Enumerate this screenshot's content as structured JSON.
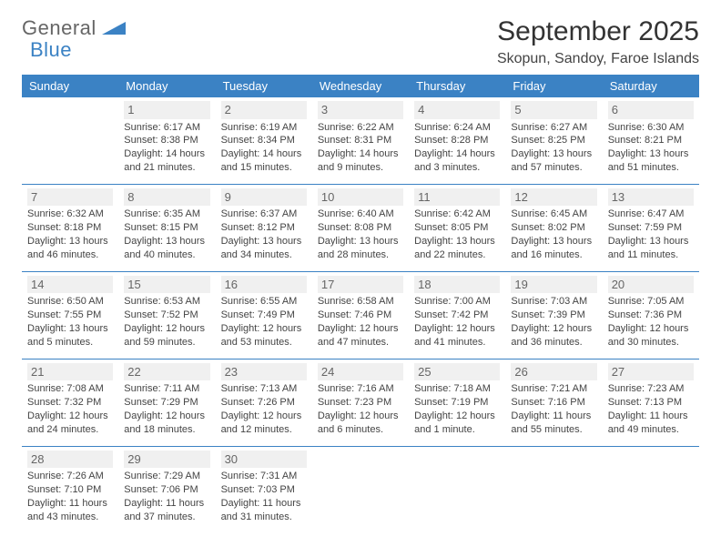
{
  "logo": {
    "part1": "General",
    "part2": "Blue"
  },
  "title": "September 2025",
  "location": "Skopun, Sandoy, Faroe Islands",
  "weekdays": [
    "Sunday",
    "Monday",
    "Tuesday",
    "Wednesday",
    "Thursday",
    "Friday",
    "Saturday"
  ],
  "colors": {
    "header_bg": "#3b82c4",
    "header_fg": "#ffffff",
    "border": "#3b82c4",
    "daynum_bg": "#f0f0f0",
    "text": "#444444"
  },
  "layout": {
    "first_weekday_offset": 1,
    "days_in_month": 30,
    "cell_fontsize_pt": 8,
    "header_fontsize_pt": 10,
    "title_fontsize_pt": 22
  },
  "days": [
    {
      "n": 1,
      "sunrise": "6:17 AM",
      "sunset": "8:38 PM",
      "daylight": "14 hours and 21 minutes."
    },
    {
      "n": 2,
      "sunrise": "6:19 AM",
      "sunset": "8:34 PM",
      "daylight": "14 hours and 15 minutes."
    },
    {
      "n": 3,
      "sunrise": "6:22 AM",
      "sunset": "8:31 PM",
      "daylight": "14 hours and 9 minutes."
    },
    {
      "n": 4,
      "sunrise": "6:24 AM",
      "sunset": "8:28 PM",
      "daylight": "14 hours and 3 minutes."
    },
    {
      "n": 5,
      "sunrise": "6:27 AM",
      "sunset": "8:25 PM",
      "daylight": "13 hours and 57 minutes."
    },
    {
      "n": 6,
      "sunrise": "6:30 AM",
      "sunset": "8:21 PM",
      "daylight": "13 hours and 51 minutes."
    },
    {
      "n": 7,
      "sunrise": "6:32 AM",
      "sunset": "8:18 PM",
      "daylight": "13 hours and 46 minutes."
    },
    {
      "n": 8,
      "sunrise": "6:35 AM",
      "sunset": "8:15 PM",
      "daylight": "13 hours and 40 minutes."
    },
    {
      "n": 9,
      "sunrise": "6:37 AM",
      "sunset": "8:12 PM",
      "daylight": "13 hours and 34 minutes."
    },
    {
      "n": 10,
      "sunrise": "6:40 AM",
      "sunset": "8:08 PM",
      "daylight": "13 hours and 28 minutes."
    },
    {
      "n": 11,
      "sunrise": "6:42 AM",
      "sunset": "8:05 PM",
      "daylight": "13 hours and 22 minutes."
    },
    {
      "n": 12,
      "sunrise": "6:45 AM",
      "sunset": "8:02 PM",
      "daylight": "13 hours and 16 minutes."
    },
    {
      "n": 13,
      "sunrise": "6:47 AM",
      "sunset": "7:59 PM",
      "daylight": "13 hours and 11 minutes."
    },
    {
      "n": 14,
      "sunrise": "6:50 AM",
      "sunset": "7:55 PM",
      "daylight": "13 hours and 5 minutes."
    },
    {
      "n": 15,
      "sunrise": "6:53 AM",
      "sunset": "7:52 PM",
      "daylight": "12 hours and 59 minutes."
    },
    {
      "n": 16,
      "sunrise": "6:55 AM",
      "sunset": "7:49 PM",
      "daylight": "12 hours and 53 minutes."
    },
    {
      "n": 17,
      "sunrise": "6:58 AM",
      "sunset": "7:46 PM",
      "daylight": "12 hours and 47 minutes."
    },
    {
      "n": 18,
      "sunrise": "7:00 AM",
      "sunset": "7:42 PM",
      "daylight": "12 hours and 41 minutes."
    },
    {
      "n": 19,
      "sunrise": "7:03 AM",
      "sunset": "7:39 PM",
      "daylight": "12 hours and 36 minutes."
    },
    {
      "n": 20,
      "sunrise": "7:05 AM",
      "sunset": "7:36 PM",
      "daylight": "12 hours and 30 minutes."
    },
    {
      "n": 21,
      "sunrise": "7:08 AM",
      "sunset": "7:32 PM",
      "daylight": "12 hours and 24 minutes."
    },
    {
      "n": 22,
      "sunrise": "7:11 AM",
      "sunset": "7:29 PM",
      "daylight": "12 hours and 18 minutes."
    },
    {
      "n": 23,
      "sunrise": "7:13 AM",
      "sunset": "7:26 PM",
      "daylight": "12 hours and 12 minutes."
    },
    {
      "n": 24,
      "sunrise": "7:16 AM",
      "sunset": "7:23 PM",
      "daylight": "12 hours and 6 minutes."
    },
    {
      "n": 25,
      "sunrise": "7:18 AM",
      "sunset": "7:19 PM",
      "daylight": "12 hours and 1 minute."
    },
    {
      "n": 26,
      "sunrise": "7:21 AM",
      "sunset": "7:16 PM",
      "daylight": "11 hours and 55 minutes."
    },
    {
      "n": 27,
      "sunrise": "7:23 AM",
      "sunset": "7:13 PM",
      "daylight": "11 hours and 49 minutes."
    },
    {
      "n": 28,
      "sunrise": "7:26 AM",
      "sunset": "7:10 PM",
      "daylight": "11 hours and 43 minutes."
    },
    {
      "n": 29,
      "sunrise": "7:29 AM",
      "sunset": "7:06 PM",
      "daylight": "11 hours and 37 minutes."
    },
    {
      "n": 30,
      "sunrise": "7:31 AM",
      "sunset": "7:03 PM",
      "daylight": "11 hours and 31 minutes."
    }
  ],
  "labels": {
    "sunrise": "Sunrise:",
    "sunset": "Sunset:",
    "daylight": "Daylight:"
  }
}
